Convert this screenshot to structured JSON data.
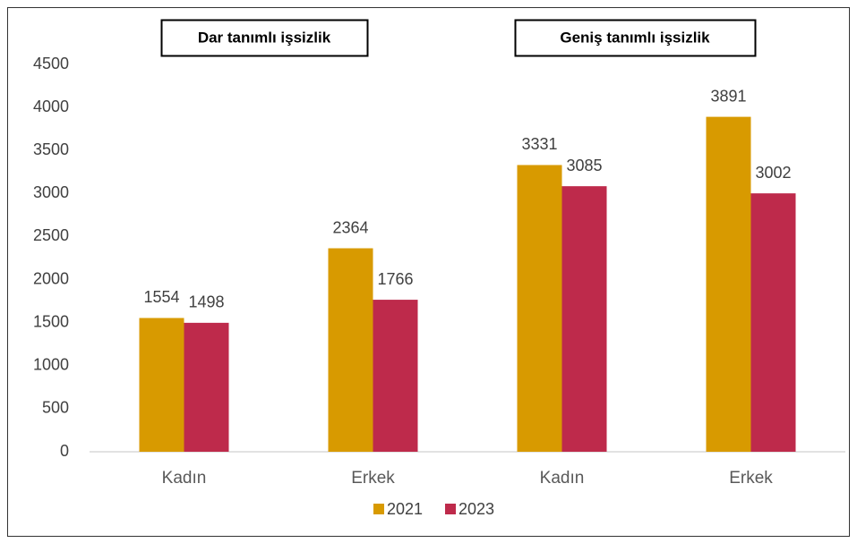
{
  "chart_data": {
    "type": "bar",
    "annotations": [
      "Dar tanımlı işsizlik",
      "Geniş tanımlı işsizlik"
    ],
    "categories": [
      "Kadın",
      "Erkek",
      "Kadın",
      "Erkek"
    ],
    "series": [
      {
        "name": "2021",
        "color": "#d89a00",
        "values": [
          1554,
          2364,
          3331,
          3891
        ]
      },
      {
        "name": "2023",
        "color": "#be2a4b",
        "values": [
          1498,
          1766,
          3085,
          3002
        ]
      }
    ],
    "ylim": [
      0,
      4500
    ],
    "yticks": [
      0,
      500,
      1000,
      1500,
      2000,
      2500,
      3000,
      3500,
      4000,
      4500
    ],
    "grid": false,
    "legend": "bottom"
  }
}
